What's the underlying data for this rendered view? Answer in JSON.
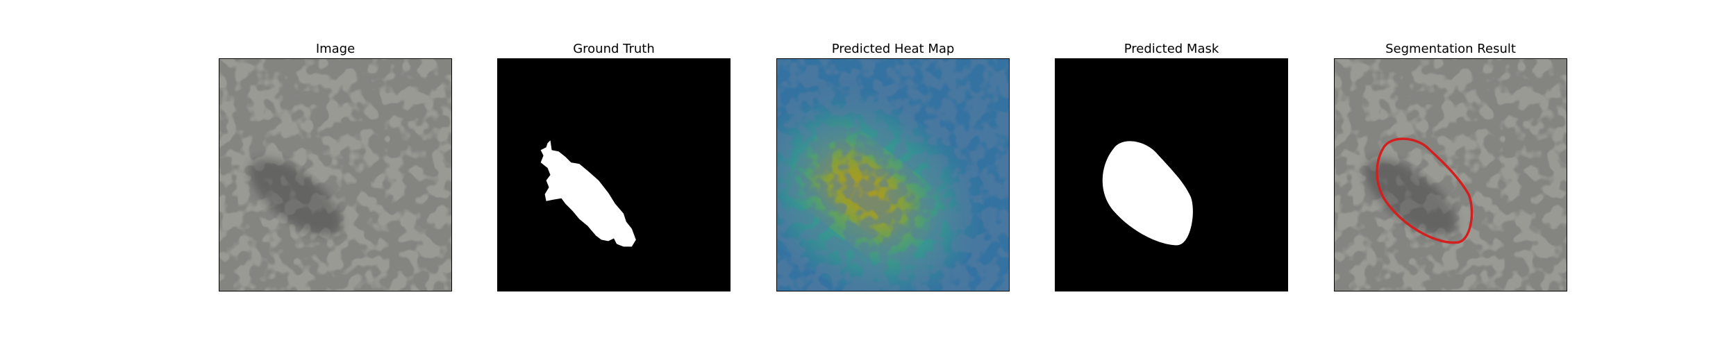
{
  "panels": [
    {
      "title": "Image"
    },
    {
      "title": "Ground Truth"
    },
    {
      "title": "Predicted Heat Map"
    },
    {
      "title": "Predicted Mask"
    },
    {
      "title": "Segmentation Result"
    }
  ],
  "colors": {
    "background": "#ffffff",
    "mask_fill": "#ffffff",
    "mask_background": "#000000",
    "texture_light": "#9a9a94",
    "texture_dark": "#3a3a38",
    "contour": "#d41f1f",
    "heat_low": "#2d5f9a",
    "heat_mid": "#3aa58a",
    "heat_high": "#b0981a"
  }
}
